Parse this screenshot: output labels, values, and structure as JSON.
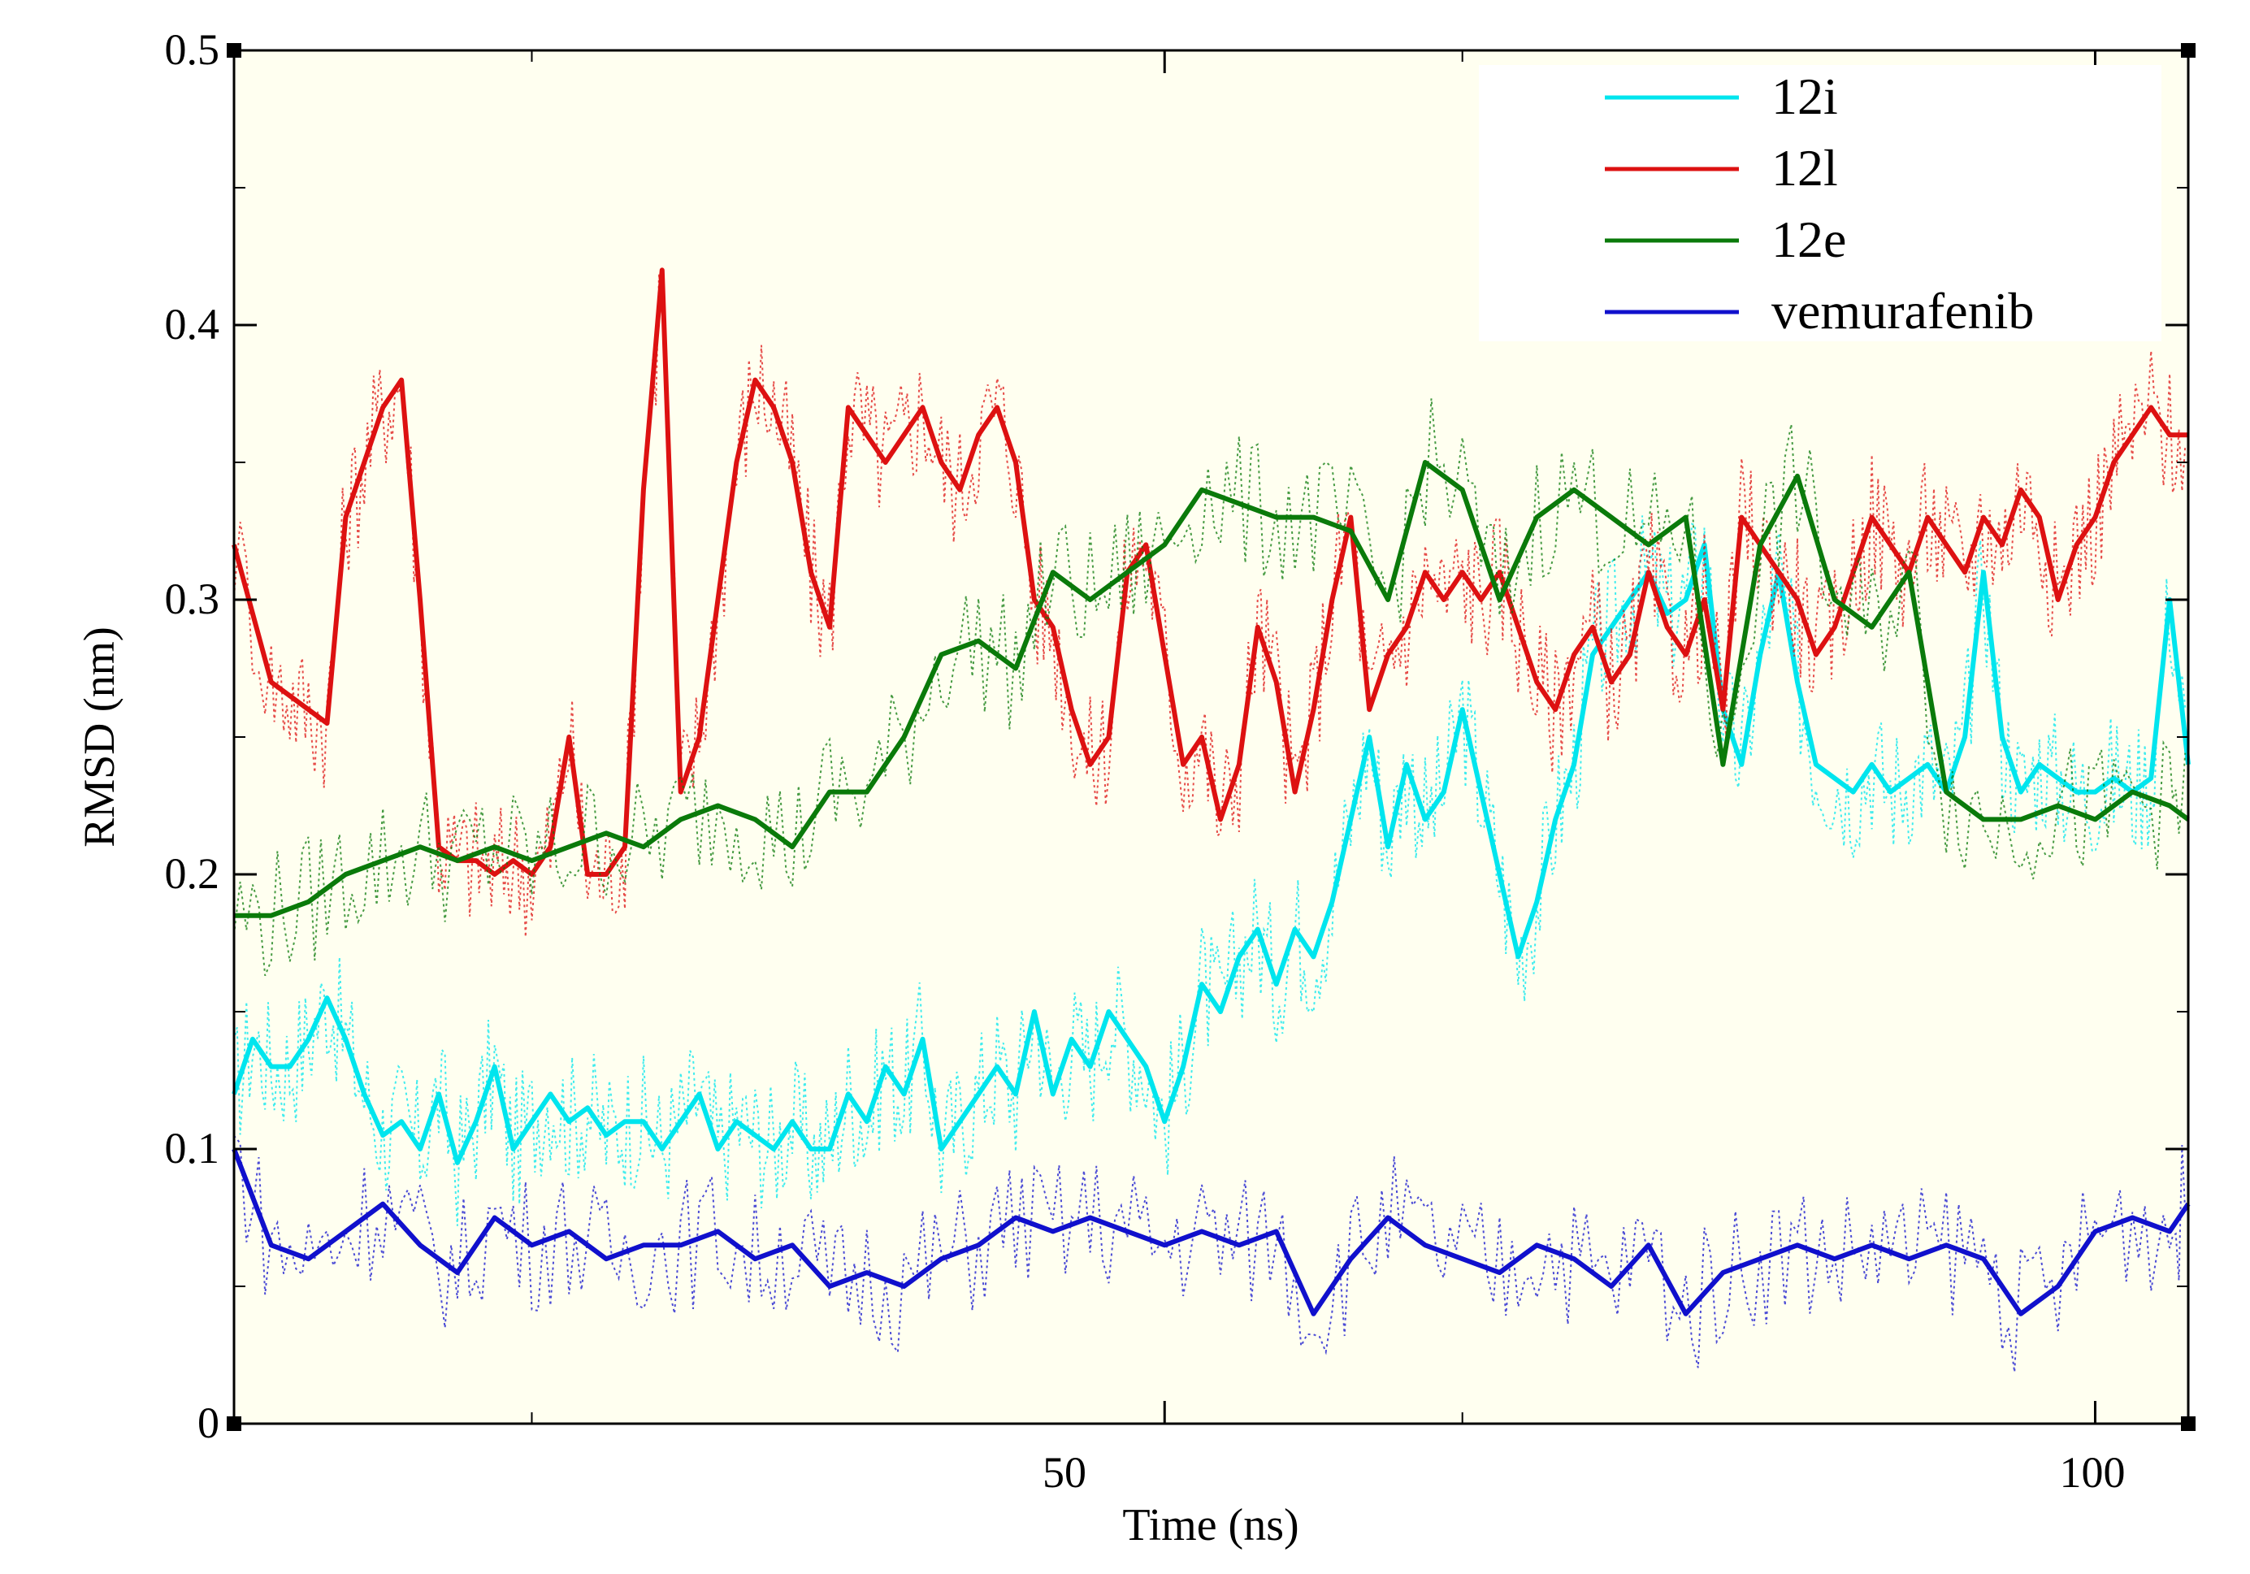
{
  "chart_data": {
    "type": "line",
    "title": "",
    "xlabel": "Time (ns)",
    "ylabel": "RMSD (nm)",
    "xlim": [
      0,
      105
    ],
    "ylim": [
      0,
      0.5
    ],
    "xticks": [
      50,
      100
    ],
    "yticks": [
      0,
      0.1,
      0.2,
      0.3,
      0.4,
      0.5
    ],
    "ytick_labels": [
      "0",
      "0.1",
      "0.2",
      "0.3",
      "0.4",
      "0.5"
    ],
    "xtick_labels": [
      "50",
      "100"
    ],
    "legend_position": "top-right",
    "background": "#fffff0",
    "series": [
      {
        "name": "12i",
        "color": "#00e5ee",
        "x": [
          0,
          1,
          2,
          3,
          4,
          5,
          6,
          7,
          8,
          9,
          10,
          11,
          12,
          13,
          14,
          15,
          16,
          17,
          18,
          19,
          20,
          21,
          22,
          23,
          24,
          25,
          26,
          27,
          28,
          29,
          30,
          31,
          32,
          33,
          34,
          35,
          36,
          37,
          38,
          39,
          40,
          41,
          42,
          43,
          44,
          45,
          46,
          47,
          48,
          49,
          50,
          51,
          52,
          53,
          54,
          55,
          56,
          57,
          58,
          59,
          60,
          61,
          62,
          63,
          64,
          65,
          66,
          67,
          68,
          69,
          70,
          71,
          72,
          73,
          74,
          75,
          76,
          77,
          78,
          79,
          80,
          81,
          82,
          83,
          84,
          85,
          86,
          87,
          88,
          89,
          90,
          91,
          92,
          93,
          94,
          95,
          96,
          97,
          98,
          99,
          100,
          101,
          102,
          103,
          104,
          105
        ],
        "values": [
          0.12,
          0.14,
          0.13,
          0.13,
          0.14,
          0.155,
          0.14,
          0.12,
          0.105,
          0.11,
          0.1,
          0.12,
          0.095,
          0.11,
          0.13,
          0.1,
          0.11,
          0.12,
          0.11,
          0.115,
          0.105,
          0.11,
          0.11,
          0.1,
          0.11,
          0.12,
          0.1,
          0.11,
          0.105,
          0.1,
          0.11,
          0.1,
          0.1,
          0.12,
          0.11,
          0.13,
          0.12,
          0.14,
          0.1,
          0.11,
          0.12,
          0.13,
          0.12,
          0.15,
          0.12,
          0.14,
          0.13,
          0.15,
          0.14,
          0.13,
          0.11,
          0.13,
          0.16,
          0.15,
          0.17,
          0.18,
          0.16,
          0.18,
          0.17,
          0.19,
          0.22,
          0.25,
          0.21,
          0.24,
          0.22,
          0.23,
          0.26,
          0.23,
          0.2,
          0.17,
          0.19,
          0.22,
          0.24,
          0.28,
          0.29,
          0.3,
          0.31,
          0.295,
          0.3,
          0.32,
          0.26,
          0.24,
          0.28,
          0.31,
          0.27,
          0.24,
          0.235,
          0.23,
          0.24,
          0.23,
          0.235,
          0.24,
          0.23,
          0.25,
          0.31,
          0.25,
          0.23,
          0.24,
          0.235,
          0.23,
          0.23,
          0.235,
          0.23,
          0.235,
          0.3,
          0.24
        ],
        "note": "approximate running-average trace"
      },
      {
        "name": "12l",
        "color": "#dd1111",
        "x": [
          0,
          2,
          3,
          4,
          5,
          6,
          7,
          8,
          9,
          10,
          11,
          12,
          13,
          14,
          15,
          16,
          17,
          18,
          19,
          20,
          21,
          22,
          23,
          24,
          25,
          26,
          27,
          28,
          29,
          30,
          31,
          32,
          33,
          34,
          35,
          36,
          37,
          38,
          39,
          40,
          41,
          42,
          43,
          44,
          45,
          46,
          47,
          48,
          49,
          50,
          51,
          52,
          53,
          54,
          55,
          56,
          57,
          58,
          59,
          60,
          61,
          62,
          63,
          64,
          65,
          66,
          67,
          68,
          69,
          70,
          71,
          72,
          73,
          74,
          75,
          76,
          77,
          78,
          79,
          80,
          81,
          82,
          83,
          84,
          85,
          86,
          87,
          88,
          89,
          90,
          91,
          92,
          93,
          94,
          95,
          96,
          97,
          98,
          99,
          100,
          101,
          102,
          103,
          104,
          105
        ],
        "values": [
          0.32,
          0.27,
          0.265,
          0.26,
          0.255,
          0.33,
          0.35,
          0.37,
          0.38,
          0.3,
          0.21,
          0.205,
          0.205,
          0.2,
          0.205,
          0.2,
          0.21,
          0.25,
          0.2,
          0.2,
          0.21,
          0.34,
          0.42,
          0.23,
          0.25,
          0.3,
          0.35,
          0.38,
          0.37,
          0.35,
          0.31,
          0.29,
          0.37,
          0.36,
          0.35,
          0.36,
          0.37,
          0.35,
          0.34,
          0.36,
          0.37,
          0.35,
          0.3,
          0.29,
          0.26,
          0.24,
          0.25,
          0.31,
          0.32,
          0.28,
          0.24,
          0.25,
          0.22,
          0.24,
          0.29,
          0.27,
          0.23,
          0.26,
          0.3,
          0.33,
          0.26,
          0.28,
          0.29,
          0.31,
          0.3,
          0.31,
          0.3,
          0.31,
          0.29,
          0.27,
          0.26,
          0.28,
          0.29,
          0.27,
          0.28,
          0.31,
          0.29,
          0.28,
          0.3,
          0.26,
          0.33,
          0.32,
          0.31,
          0.3,
          0.28,
          0.29,
          0.31,
          0.33,
          0.32,
          0.31,
          0.33,
          0.32,
          0.31,
          0.33,
          0.32,
          0.34,
          0.33,
          0.3,
          0.32,
          0.33,
          0.35,
          0.36,
          0.37,
          0.36,
          0.36
        ],
        "note": "approximate running-average trace"
      },
      {
        "name": "12e",
        "color": "#0a7a0a",
        "x": [
          0,
          2,
          4,
          6,
          8,
          10,
          12,
          14,
          16,
          18,
          20,
          22,
          24,
          26,
          28,
          30,
          32,
          34,
          36,
          38,
          40,
          42,
          44,
          46,
          48,
          50,
          52,
          54,
          56,
          58,
          60,
          62,
          64,
          66,
          68,
          70,
          72,
          74,
          76,
          78,
          80,
          82,
          84,
          86,
          88,
          90,
          92,
          94,
          96,
          98,
          100,
          102,
          104,
          105
        ],
        "values": [
          0.185,
          0.185,
          0.19,
          0.2,
          0.205,
          0.21,
          0.205,
          0.21,
          0.205,
          0.21,
          0.215,
          0.21,
          0.22,
          0.225,
          0.22,
          0.21,
          0.23,
          0.23,
          0.25,
          0.28,
          0.285,
          0.275,
          0.31,
          0.3,
          0.31,
          0.32,
          0.34,
          0.335,
          0.33,
          0.33,
          0.325,
          0.3,
          0.35,
          0.34,
          0.3,
          0.33,
          0.34,
          0.33,
          0.32,
          0.33,
          0.24,
          0.32,
          0.345,
          0.3,
          0.29,
          0.31,
          0.23,
          0.22,
          0.22,
          0.225,
          0.22,
          0.23,
          0.225,
          0.22
        ],
        "note": "approximate running-average trace"
      },
      {
        "name": "vemurafenib",
        "color": "#1010cc",
        "x": [
          0,
          2,
          4,
          6,
          8,
          10,
          12,
          14,
          16,
          18,
          20,
          22,
          24,
          26,
          28,
          30,
          32,
          34,
          36,
          38,
          40,
          42,
          44,
          46,
          48,
          50,
          52,
          54,
          56,
          58,
          60,
          62,
          64,
          66,
          68,
          70,
          72,
          74,
          76,
          78,
          80,
          82,
          84,
          86,
          88,
          90,
          92,
          94,
          96,
          98,
          100,
          102,
          104,
          105
        ],
        "values": [
          0.1,
          0.065,
          0.06,
          0.07,
          0.08,
          0.065,
          0.055,
          0.075,
          0.065,
          0.07,
          0.06,
          0.065,
          0.065,
          0.07,
          0.06,
          0.065,
          0.05,
          0.055,
          0.05,
          0.06,
          0.065,
          0.075,
          0.07,
          0.075,
          0.07,
          0.065,
          0.07,
          0.065,
          0.07,
          0.04,
          0.06,
          0.075,
          0.065,
          0.06,
          0.055,
          0.065,
          0.06,
          0.05,
          0.065,
          0.04,
          0.055,
          0.06,
          0.065,
          0.06,
          0.065,
          0.06,
          0.065,
          0.06,
          0.04,
          0.05,
          0.07,
          0.075,
          0.07,
          0.08
        ],
        "note": "approximate running-average trace"
      }
    ]
  }
}
